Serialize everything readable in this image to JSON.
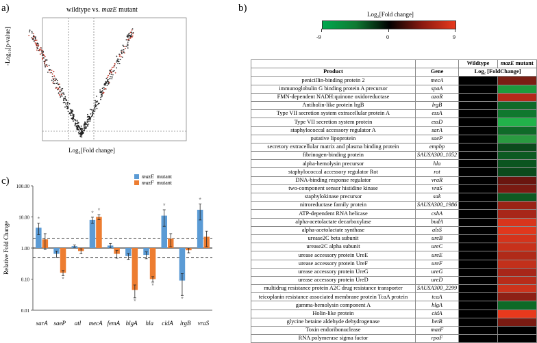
{
  "panel_a": {
    "label": "a)",
    "title_prefix": "wildtype vs. ",
    "title_gene": "mazE",
    "title_suffix": " mutant",
    "ylabel": "-Log₁₀[p-value]",
    "xlabel": "Log₂[Fold change]"
  },
  "panel_b": {
    "label": "b)",
    "legend_title": "Log₂[Fold change]",
    "legend_min": "-9",
    "legend_mid": "0",
    "legend_max": "9",
    "colors": {
      "low": "#00a84f",
      "mid": "#000000",
      "high": "#e8391d"
    },
    "headers": {
      "product": "Product",
      "gene": "Gene",
      "wildtype": "Wildtype",
      "mutant_gene": "mazE",
      "mutant_suffix": " mutant",
      "log_label": "Log₂ [FoldChange]"
    },
    "rows": [
      {
        "product": "penicillin-binding protein 2",
        "gene": "mecA",
        "color": "#7a1f14"
      },
      {
        "product": "immunoglobulin G binding protein A precursor",
        "gene": "spaA",
        "color": "#1d9a3d"
      },
      {
        "product": "FMN-dependent NADH:quinone oxidoreductase",
        "gene": "azoR",
        "color": "#b5281a"
      },
      {
        "product": "Antiholin-like protein lrgB",
        "gene": "lrgB",
        "color": "#0f6a28"
      },
      {
        "product": "Type VII secretion system extracellular protein A",
        "gene": "essA",
        "color": "#10782e"
      },
      {
        "product": "Type VII secretion system protein",
        "gene": "essD",
        "color": "#22b24a"
      },
      {
        "product": "staphylococcal accessory regulator A",
        "gene": "sarA",
        "color": "#0f6a28"
      },
      {
        "product": "putative lipoprotein",
        "gene": "saeP",
        "color": "#2a9a40"
      },
      {
        "product": "secretory extracellular matrix and plasma binding protein",
        "gene": "empbp",
        "color": "#0c4a1c"
      },
      {
        "product": "fibrinogen-binding protein",
        "gene": "SAUSA300_1052",
        "color": "#0d5a22"
      },
      {
        "product": "alpha-hemolysin precursor",
        "gene": "hla",
        "color": "#0b5520"
      },
      {
        "product": "staphylococcal accessory regulator Rot",
        "gene": "rot",
        "color": "#0b4a1c"
      },
      {
        "product": "DNA-binding response regulator",
        "gene": "vraR",
        "color": "#6a150f"
      },
      {
        "product": "two-component sensor histidine kinase",
        "gene": "vraS",
        "color": "#7a1a12"
      },
      {
        "product": "staphylokinase precursor",
        "gene": "sak",
        "color": "#0d5a22"
      },
      {
        "product": "nitroreductase family protein",
        "gene": "SAUSA300_1986",
        "color": "#9a2316"
      },
      {
        "product": "ATP-dependent RNA helicase",
        "gene": "cshA",
        "color": "#a82619"
      },
      {
        "product": "alpha-acetolactate decarboxylase",
        "gene": "budA",
        "color": "#d8351c"
      },
      {
        "product": "alpha-acetolactate synthase",
        "gene": "alsS",
        "color": "#e0381d"
      },
      {
        "product": "urease2C beta subunit",
        "gene": "ureB",
        "color": "#d4341c"
      },
      {
        "product": "urease2C alpha subunit",
        "gene": "ureC",
        "color": "#c8311b"
      },
      {
        "product": "urease accessory protein UreE",
        "gene": "ureE",
        "color": "#b02a19"
      },
      {
        "product": "urease accessory protein UreF",
        "gene": "ureF",
        "color": "#c2301b"
      },
      {
        "product": "urease accessory protein UreG",
        "gene": "ureG",
        "color": "#a82619"
      },
      {
        "product": "urease accessory protein UreD",
        "gene": "ureD",
        "color": "#b82c1a"
      },
      {
        "product": "multidrug resistance protein A2C drug resistance transporter",
        "gene": "SAUSA300_2299",
        "color": "#cc331c"
      },
      {
        "product": "teicoplanin resistance associated membrane protein TcaA protein",
        "gene": "tcaA",
        "color": "#8e2015"
      },
      {
        "product": "gamma-hemolysin component A",
        "gene": "hlgA",
        "color": "#0e6a27"
      },
      {
        "product": "Holin-like protein",
        "gene": "cidA",
        "color": "#e8391d"
      },
      {
        "product": "glycine betaine aldehyde dehydrogenase",
        "gene": "betB",
        "color": "#7a1b12"
      },
      {
        "product": "Toxin endoribonuclease",
        "gene": "mazF",
        "color": "#000000"
      },
      {
        "product": "RNA polymerase sigma factor",
        "gene": "rpoF",
        "color": "#000000"
      }
    ]
  },
  "panel_c": {
    "label": "c)",
    "ylabel": "Relative Fold Change",
    "legend": [
      {
        "gene": "mazE",
        "suffix": " mutant",
        "color": "#5b9bd5"
      },
      {
        "gene": "mazF",
        "suffix": " mutant",
        "color": "#ed7d31"
      }
    ]
  },
  "chart_data": [
    {
      "type": "scatter",
      "title": "wildtype vs. mazE mutant",
      "xlabel": "Log₂[Fold change]",
      "ylabel": "-Log₁₀[p-value]",
      "description_series": "volcano plot of all genes; points beyond the fold-change thresholds highlighted in red"
    },
    {
      "type": "bar",
      "ylabel": "Relative Fold Change",
      "yscale": "log",
      "ylim": [
        0.01,
        100
      ],
      "yticks": [
        "0.01",
        "0.10",
        "1.00",
        "10.00",
        "100.00"
      ],
      "reference_lines": [
        0.5,
        1.0,
        2.0
      ],
      "categories": [
        "sarA",
        "saeP",
        "atl",
        "mecA",
        "femA",
        "hlgA",
        "hla",
        "cidA",
        "lrgB",
        "vraS"
      ],
      "series": [
        {
          "name": "mazE mutant",
          "values": [
            4.5,
            0.65,
            1.15,
            8.0,
            1.2,
            0.55,
            0.6,
            11.0,
            0.09,
            17.0
          ],
          "err": [
            1.8,
            0.15,
            0.1,
            1.8,
            0.2,
            0.12,
            0.15,
            6.0,
            0.06,
            9.0
          ],
          "sig": [
            true,
            false,
            false,
            true,
            false,
            false,
            false,
            true,
            true,
            true
          ]
        },
        {
          "name": "mazF mutant",
          "values": [
            1.9,
            0.16,
            0.8,
            10.0,
            0.65,
            0.045,
            0.1,
            2.0,
            0.85,
            2.3
          ],
          "err": [
            1.0,
            0.03,
            0.15,
            1.8,
            0.18,
            0.02,
            0.02,
            0.9,
            0.15,
            1.2
          ],
          "sig": [
            false,
            true,
            false,
            true,
            false,
            true,
            true,
            false,
            false,
            false
          ]
        }
      ]
    }
  ]
}
